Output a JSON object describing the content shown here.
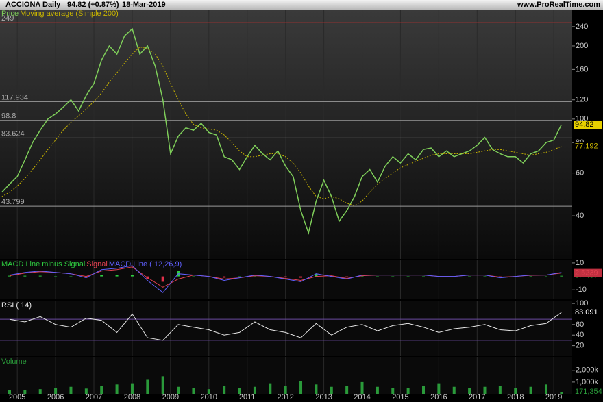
{
  "header": {
    "symbol": "ACCIONA",
    "period": "Daily",
    "quote": "94.82 (+0.87%)",
    "date": "18-Mar-2019",
    "site": "www.ProRealTime.com"
  },
  "chart_data": [
    {
      "type": "line",
      "log_scale": true,
      "ylim": [
        26.6,
        282
      ],
      "xlim": [
        2004.55,
        2019.48
      ],
      "yticks": [
        40,
        60,
        80,
        100,
        120,
        160,
        200,
        240
      ],
      "levels": [
        {
          "value": 249,
          "color": "#b03030"
        },
        {
          "value": 117.934,
          "color": "#9a9a9a"
        },
        {
          "value": 98.8,
          "color": "#9a9a9a"
        },
        {
          "value": 83.624,
          "color": "#9a9a9a"
        },
        {
          "value": 43.799,
          "color": "#9a9a9a"
        }
      ],
      "x": [
        2004.6,
        2004.8,
        2005.0,
        2005.2,
        2005.4,
        2005.6,
        2005.8,
        2006.0,
        2006.2,
        2006.4,
        2006.6,
        2006.8,
        2007.0,
        2007.2,
        2007.4,
        2007.6,
        2007.8,
        2008.0,
        2008.2,
        2008.4,
        2008.6,
        2008.8,
        2009.0,
        2009.2,
        2009.4,
        2009.6,
        2009.8,
        2010.0,
        2010.2,
        2010.4,
        2010.6,
        2010.8,
        2011.0,
        2011.2,
        2011.4,
        2011.6,
        2011.8,
        2012.0,
        2012.2,
        2012.4,
        2012.6,
        2012.8,
        2013.0,
        2013.2,
        2013.4,
        2013.6,
        2013.8,
        2014.0,
        2014.2,
        2014.4,
        2014.6,
        2014.8,
        2015.0,
        2015.2,
        2015.4,
        2015.6,
        2015.8,
        2016.0,
        2016.2,
        2016.4,
        2016.6,
        2016.8,
        2017.0,
        2017.2,
        2017.4,
        2017.6,
        2017.8,
        2018.0,
        2018.2,
        2018.4,
        2018.6,
        2018.8,
        2019.0,
        2019.2
      ],
      "series": [
        {
          "name": "Price",
          "color": "#7fcf5a",
          "end_label": true,
          "label_bg": "#e8d000",
          "values": [
            50,
            54,
            58,
            68,
            80,
            90,
            100,
            105,
            112,
            120,
            108,
            125,
            140,
            175,
            200,
            185,
            220,
            235,
            185,
            200,
            165,
            120,
            72,
            85,
            92,
            90,
            96,
            88,
            86,
            70,
            68,
            62,
            70,
            78,
            72,
            68,
            74,
            64,
            58,
            42,
            34,
            46,
            56,
            48,
            38,
            42,
            48,
            58,
            62,
            55,
            64,
            70,
            66,
            72,
            68,
            75,
            76,
            70,
            74,
            70,
            72,
            74,
            78,
            84,
            75,
            72,
            70,
            70,
            66,
            72,
            74,
            80,
            82,
            94.82
          ]
        },
        {
          "name": "Moving average (Simple 200)",
          "color": "#c8b400",
          "dash": true,
          "end_label": true,
          "label_bg": "#000000",
          "values": [
            48,
            50,
            53,
            57,
            62,
            68,
            75,
            82,
            90,
            97,
            103,
            110,
            118,
            128,
            142,
            155,
            170,
            185,
            198,
            195,
            185,
            165,
            140,
            120,
            105,
            95,
            92,
            91,
            90,
            86,
            80,
            74,
            70,
            70,
            71,
            72,
            72,
            70,
            66,
            60,
            53,
            48,
            47,
            48,
            47,
            45,
            44,
            46,
            50,
            54,
            57,
            60,
            63,
            65,
            67,
            69,
            71,
            72,
            72,
            72,
            72,
            72,
            73,
            74,
            75,
            75,
            74,
            73,
            72,
            71,
            72,
            73,
            75,
            77.192
          ]
        }
      ]
    },
    {
      "type": "line",
      "ylim": [
        -17,
        12
      ],
      "xlim": [
        2004.55,
        2019.48
      ],
      "yticks": [
        -10,
        10
      ],
      "x": [
        2004.8,
        2005.2,
        2005.6,
        2006.0,
        2006.4,
        2006.8,
        2007.2,
        2007.6,
        2008.0,
        2008.4,
        2008.8,
        2009.2,
        2009.6,
        2010.0,
        2010.4,
        2010.8,
        2011.2,
        2011.6,
        2012.0,
        2012.4,
        2012.8,
        2013.2,
        2013.6,
        2014.0,
        2014.4,
        2014.8,
        2015.2,
        2015.6,
        2016.0,
        2016.4,
        2016.8,
        2017.2,
        2017.6,
        2018.0,
        2018.4,
        2018.8,
        2019.2
      ],
      "series": [
        {
          "name": "MACD Line minus Signal",
          "type": "bar",
          "color": "#2ecc40",
          "neg_color": "#e0304a",
          "end_label": true,
          "label_bg": "#000000",
          "values": [
            0.5,
            0.5,
            0.5,
            0,
            0,
            -1,
            1,
            1,
            1,
            -2,
            -4,
            4,
            0,
            0,
            -1,
            0,
            0.5,
            0,
            -0.5,
            -1,
            2,
            -0.5,
            -0.5,
            0.5,
            0,
            0,
            0,
            0,
            0,
            0,
            0,
            0,
            -0.5,
            0,
            0.2,
            0,
            0.4457
          ]
        },
        {
          "name": "Signal",
          "color": "#e04050",
          "end_label": true,
          "label_bg": "#c03040",
          "values": [
            0.5,
            2.5,
            3.5,
            3,
            2,
            0,
            4,
            5,
            7,
            -1,
            -8,
            -2,
            1,
            0,
            -2,
            -1,
            0.5,
            0,
            -1.5,
            -3,
            0,
            0.5,
            -1.5,
            0.5,
            1,
            1,
            1,
            1,
            0,
            0,
            1,
            1,
            -0.5,
            0,
            0.8,
            1,
            2.5239
          ]
        },
        {
          "name": "MACD Line ( 12,26,9)",
          "color": "#6060ff",
          "values": [
            1,
            3,
            4,
            3,
            2,
            -1,
            5,
            6,
            8,
            -3,
            -12,
            2,
            1,
            0,
            -3,
            -1,
            1,
            0,
            -2,
            -4,
            2,
            0,
            -2,
            1,
            1,
            1,
            1,
            1,
            0,
            0,
            1,
            1,
            -1,
            0,
            1,
            1,
            2.9696
          ]
        }
      ]
    },
    {
      "type": "line",
      "ylim": [
        0,
        104
      ],
      "xlim": [
        2004.55,
        2019.48
      ],
      "yticks": [
        20,
        40,
        60,
        80,
        100
      ],
      "levels": [
        {
          "value": 70,
          "color": "#6a4aa0"
        },
        {
          "value": 30,
          "color": "#6a4aa0"
        }
      ],
      "x": [
        2004.8,
        2005.2,
        2005.6,
        2006.0,
        2006.4,
        2006.8,
        2007.2,
        2007.6,
        2008.0,
        2008.4,
        2008.8,
        2009.2,
        2009.6,
        2010.0,
        2010.4,
        2010.8,
        2011.2,
        2011.6,
        2012.0,
        2012.4,
        2012.8,
        2013.2,
        2013.6,
        2014.0,
        2014.4,
        2014.8,
        2015.2,
        2015.6,
        2016.0,
        2016.4,
        2016.8,
        2017.2,
        2017.6,
        2018.0,
        2018.4,
        2018.8,
        2019.2
      ],
      "series": [
        {
          "name": "RSI ( 14)",
          "color": "#e8e8e8",
          "end_label": true,
          "label_bg": "#000000",
          "values": [
            70,
            65,
            75,
            60,
            55,
            72,
            68,
            45,
            80,
            35,
            30,
            60,
            55,
            50,
            40,
            45,
            65,
            50,
            45,
            35,
            62,
            40,
            55,
            60,
            48,
            58,
            62,
            55,
            45,
            52,
            55,
            60,
            50,
            48,
            58,
            62,
            83.091
          ]
        }
      ]
    },
    {
      "type": "bar",
      "ylim": [
        0,
        3100000
      ],
      "xlim": [
        2004.55,
        2019.48
      ],
      "yticks": [
        {
          "value": 1000000,
          "label": "1,000k"
        },
        {
          "value": 2000000,
          "label": "2,000k"
        }
      ],
      "xticks": [
        2005,
        2006,
        2007,
        2008,
        2009,
        2010,
        2011,
        2012,
        2013,
        2014,
        2015,
        2016,
        2017,
        2018,
        2019
      ],
      "x": [
        2004.8,
        2005.2,
        2005.6,
        2006.0,
        2006.4,
        2006.8,
        2007.2,
        2007.6,
        2008.0,
        2008.4,
        2008.8,
        2009.2,
        2009.6,
        2010.0,
        2010.4,
        2010.8,
        2011.2,
        2011.6,
        2012.0,
        2012.4,
        2012.8,
        2013.2,
        2013.6,
        2014.0,
        2014.4,
        2014.8,
        2015.2,
        2015.6,
        2016.0,
        2016.4,
        2016.8,
        2017.2,
        2017.6,
        2018.0,
        2018.4,
        2018.8,
        2019.2
      ],
      "series": [
        {
          "name": "Volume",
          "color": "#2a9a3a",
          "end_label": true,
          "label_bg": "#000000",
          "values": [
            300000,
            350000,
            400000,
            500000,
            600000,
            450000,
            700000,
            800000,
            900000,
            1200000,
            1500000,
            600000,
            500000,
            400000,
            700000,
            500000,
            600000,
            900000,
            700000,
            1100000,
            800000,
            600000,
            700000,
            1000000,
            600000,
            500000,
            500000,
            700000,
            900000,
            600000,
            500000,
            600000,
            700000,
            500000,
            600000,
            800000,
            171354
          ],
          "value_labels": [
            null,
            null,
            null,
            null,
            null,
            null,
            null,
            null,
            null,
            null,
            null,
            null,
            null,
            null,
            null,
            null,
            null,
            null,
            null,
            null,
            null,
            null,
            null,
            null,
            null,
            null,
            null,
            null,
            null,
            null,
            null,
            null,
            null,
            null,
            null,
            null,
            "171,354"
          ]
        }
      ]
    }
  ]
}
